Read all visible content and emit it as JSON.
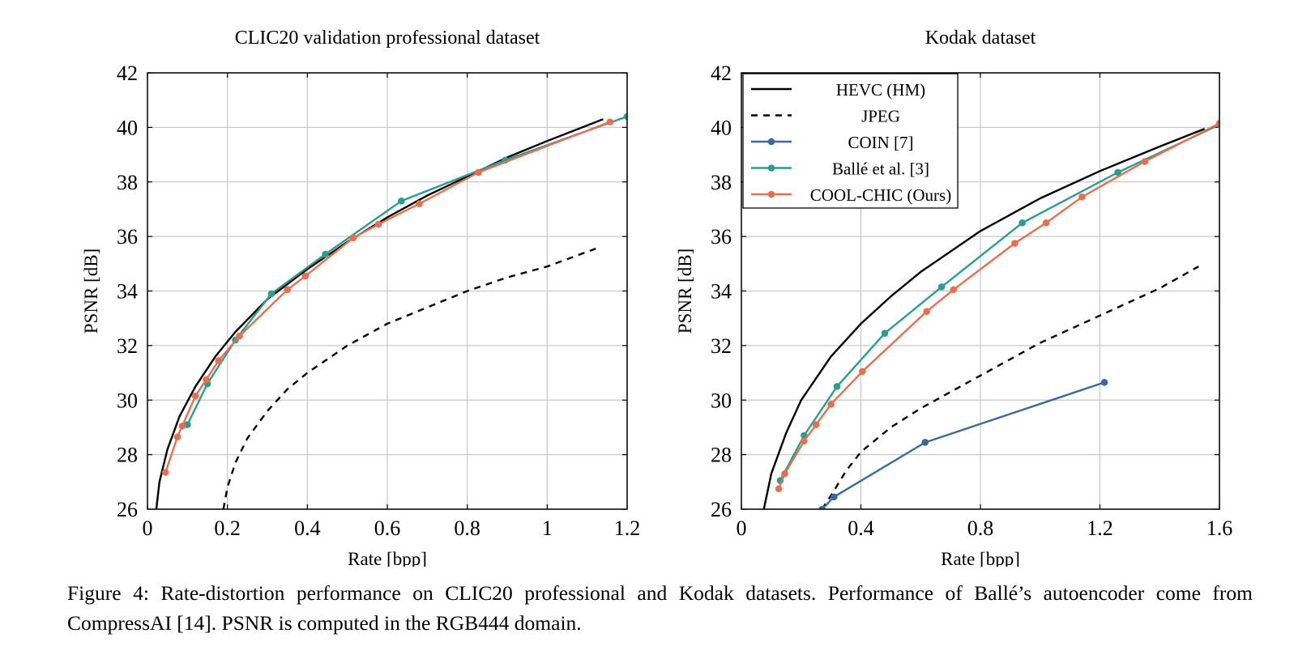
{
  "caption": "Figure 4: Rate-distortion performance on CLIC20 professional and Kodak datasets. Performance of Ballé’s autoencoder come from CompressAI [14]. PSNR is computed in the RGB444 domain.",
  "styles": {
    "HEVC (HM)": {
      "color": "#000000",
      "dash": "",
      "marker": false
    },
    "JPEG": {
      "color": "#000000",
      "dash": "8,7",
      "marker": false
    },
    "COIN [7]": {
      "color": "#3a6a9b",
      "dash": "",
      "marker": true
    },
    "Ballé et al. [3]": {
      "color": "#2a9d8f",
      "dash": "",
      "marker": true
    },
    "COOL-CHIC (Ours)": {
      "color": "#e76f51",
      "dash": "",
      "marker": true
    }
  },
  "chart_data": [
    {
      "type": "line",
      "title": "CLIC20 validation professional dataset",
      "xlabel": "Rate [bpp]",
      "ylabel": "PSNR [dB]",
      "xlim": [
        0,
        1.2
      ],
      "ylim": [
        26,
        42
      ],
      "xticks": [
        0,
        0.2,
        0.4,
        0.6,
        0.8,
        1,
        1.2
      ],
      "xticklabels": [
        "0",
        "0.2",
        "0.4",
        "0.6",
        "0.8",
        "1",
        "1.2"
      ],
      "yticks": [
        26,
        28,
        30,
        32,
        34,
        36,
        38,
        40,
        42
      ],
      "grid": true,
      "legend": "none",
      "series": [
        {
          "name": "HEVC (HM)",
          "x": [
            0.022,
            0.03,
            0.05,
            0.08,
            0.12,
            0.17,
            0.22,
            0.3,
            0.4,
            0.5,
            0.6,
            0.7,
            0.8,
            0.9,
            1.0,
            1.14
          ],
          "y": [
            26.0,
            27.0,
            28.2,
            29.4,
            30.5,
            31.6,
            32.5,
            33.7,
            34.8,
            35.8,
            36.7,
            37.5,
            38.2,
            38.9,
            39.5,
            40.3
          ]
        },
        {
          "name": "JPEG",
          "x": [
            0.19,
            0.2,
            0.22,
            0.25,
            0.3,
            0.35,
            0.4,
            0.5,
            0.6,
            0.7,
            0.8,
            0.9,
            1.0,
            1.13
          ],
          "y": [
            26.0,
            26.8,
            27.7,
            28.6,
            29.6,
            30.4,
            31.0,
            32.0,
            32.8,
            33.4,
            34.0,
            34.5,
            34.9,
            35.6
          ]
        },
        {
          "name": "Ballé et al. [3]",
          "x": [
            0.1,
            0.15,
            0.22,
            0.31,
            0.445,
            0.635,
            0.895,
            1.2
          ],
          "y": [
            29.1,
            30.6,
            32.2,
            33.9,
            35.35,
            37.3,
            38.8,
            40.4
          ]
        },
        {
          "name": "COOL-CHIC (Ours)",
          "x": [
            0.045,
            0.075,
            0.087,
            0.12,
            0.147,
            0.178,
            0.23,
            0.35,
            0.395,
            0.515,
            0.578,
            0.68,
            0.828,
            1.157
          ],
          "y": [
            27.35,
            28.65,
            29.05,
            30.15,
            30.75,
            31.45,
            32.35,
            34.05,
            34.55,
            35.95,
            36.45,
            37.2,
            38.35,
            40.2
          ]
        }
      ]
    },
    {
      "type": "line",
      "title": "Kodak dataset",
      "xlabel": "Rate [bpp]",
      "ylabel": "PSNR [dB]",
      "xlim": [
        0,
        1.6
      ],
      "ylim": [
        26,
        42
      ],
      "xticks": [
        0,
        0.4,
        0.8,
        1.2,
        1.6
      ],
      "xticklabels": [
        "0",
        "0.4",
        "0.8",
        "1.2",
        "1.6"
      ],
      "yticks": [
        26,
        28,
        30,
        32,
        34,
        36,
        38,
        40,
        42
      ],
      "grid": true,
      "legend": "top-left",
      "series": [
        {
          "name": "HEVC (HM)",
          "x": [
            0.075,
            0.1,
            0.15,
            0.2,
            0.3,
            0.4,
            0.5,
            0.6,
            0.8,
            1.0,
            1.2,
            1.4,
            1.55
          ],
          "y": [
            26.0,
            27.3,
            28.8,
            30.0,
            31.6,
            32.8,
            33.8,
            34.7,
            36.2,
            37.4,
            38.4,
            39.3,
            39.95
          ]
        },
        {
          "name": "JPEG",
          "x": [
            0.27,
            0.3,
            0.35,
            0.4,
            0.5,
            0.6,
            0.8,
            1.0,
            1.2,
            1.4,
            1.53
          ],
          "y": [
            26.0,
            26.5,
            27.4,
            28.1,
            29.0,
            29.7,
            30.9,
            32.1,
            33.1,
            34.1,
            34.9
          ]
        },
        {
          "name": "COIN [7]",
          "x": [
            0.27,
            0.31,
            0.615,
            1.215
          ],
          "y": [
            26.0,
            26.45,
            28.45,
            30.65
          ]
        },
        {
          "name": "Ballé et al. [3]",
          "x": [
            0.13,
            0.21,
            0.32,
            0.48,
            0.67,
            0.94,
            1.26,
            1.6
          ],
          "y": [
            27.05,
            28.7,
            30.5,
            32.45,
            34.15,
            36.5,
            38.35,
            40.1
          ]
        },
        {
          "name": "COOL-CHIC (Ours)",
          "x": [
            0.125,
            0.145,
            0.21,
            0.25,
            0.3,
            0.405,
            0.62,
            0.71,
            0.915,
            1.02,
            1.14,
            1.35,
            1.6
          ],
          "y": [
            26.75,
            27.3,
            28.5,
            29.1,
            29.85,
            31.05,
            33.25,
            34.05,
            35.75,
            36.5,
            37.45,
            38.75,
            40.15
          ]
        }
      ],
      "legend_entries": [
        "HEVC (HM)",
        "JPEG",
        "COIN [7]",
        "Ballé et al. [3]",
        "COOL-CHIC (Ours)"
      ]
    }
  ]
}
